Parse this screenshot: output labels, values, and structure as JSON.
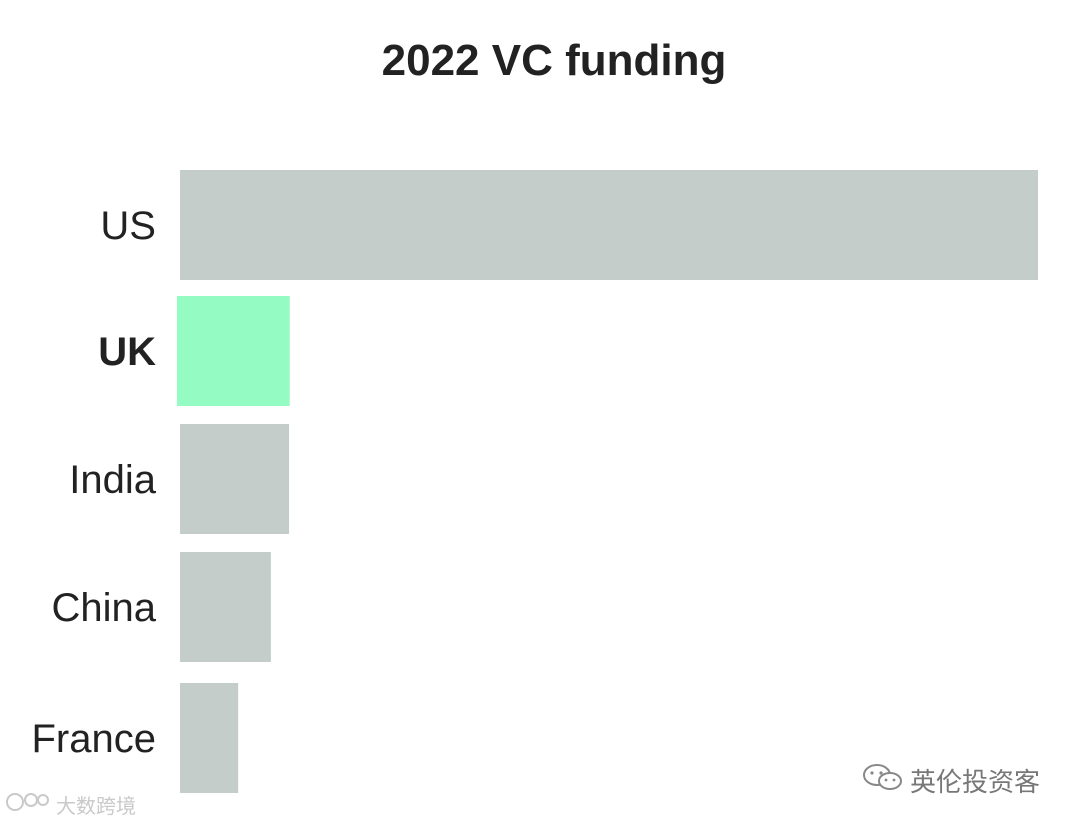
{
  "chart_data": {
    "type": "bar",
    "orientation": "horizontal",
    "title": "2022 VC funding",
    "categories": [
      "US",
      "UK",
      "India",
      "China",
      "France"
    ],
    "values": [
      236,
      31,
      30,
      25,
      16
    ],
    "highlight": "UK",
    "xlabel": "",
    "ylabel": "",
    "xlim": [
      0,
      236
    ],
    "grid": false,
    "legend": "none",
    "colors": {
      "default": "#c4cdc9",
      "highlight": "#94fcc3"
    }
  },
  "watermarks": {
    "left": "大数跨境",
    "right": "英伦投资客"
  }
}
